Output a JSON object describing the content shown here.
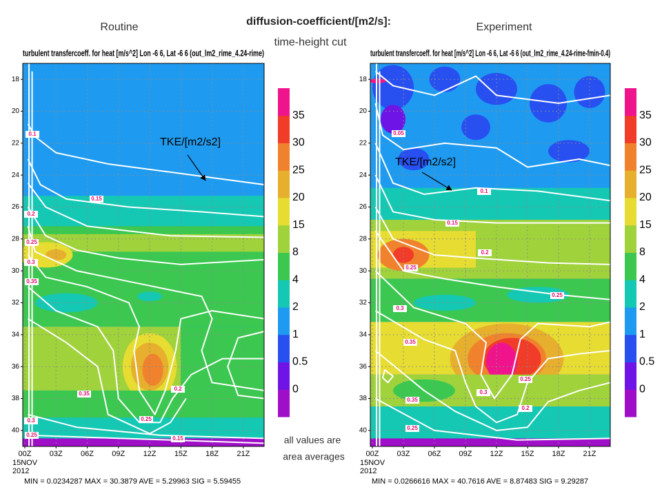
{
  "header": {
    "title": "diffusion-coefficient/[m2/s]:",
    "subtitle": "time-height cut",
    "note": [
      "all values are",
      "area averages"
    ]
  },
  "chart_data": [
    {
      "type": "contour",
      "label": "Routine",
      "title": "turbulent transfercoeff. for heat [m/s^2] Lon -6 6, Lat -6 6 (out_lm2_rime_4.24-rime)",
      "annotation": "TKE/[m2/s2]",
      "xlim": [
        -0.2,
        23
      ],
      "xticks": [
        {
          "value": 0,
          "label": "00Z"
        },
        {
          "value": 3,
          "label": "03Z"
        },
        {
          "value": 6,
          "label": "06Z"
        },
        {
          "value": 9,
          "label": "09Z"
        },
        {
          "value": 12,
          "label": "12Z"
        },
        {
          "value": 15,
          "label": "15Z"
        },
        {
          "value": 18,
          "label": "18Z"
        },
        {
          "value": 21,
          "label": "21Z"
        }
      ],
      "x_date": [
        "15NOV",
        "2012"
      ],
      "ylim": [
        17,
        41
      ],
      "y_reversed": true,
      "yticks": [
        18,
        20,
        22,
        24,
        26,
        28,
        30,
        32,
        34,
        36,
        38,
        40
      ],
      "grid": true,
      "contour_color": "#ffffff",
      "contour_labels": [
        0.1,
        0.15,
        0.2,
        0.25,
        0.3,
        0.35,
        0.35,
        0.2,
        0.25,
        0.3,
        0.25,
        0.15
      ],
      "colorbar": {
        "levels": [
          0,
          0.5,
          1,
          2,
          4,
          8,
          15,
          20,
          25,
          30,
          35
        ],
        "colors": [
          "#a00fc8",
          "#6e14e6",
          "#2850f0",
          "#1e9bf0",
          "#14c8b4",
          "#3cc850",
          "#a0d23c",
          "#e6dc32",
          "#e6af2d",
          "#f0822d",
          "#f03c28",
          "#f0148c"
        ]
      },
      "stats": "MIN = 0.0234287   MAX = 30.3879   AVE = 5.29963   SIG = 5.59455"
    },
    {
      "type": "contour",
      "label": "Experiment",
      "title": "turbulent transfercoeff. for heat [m/s^2] Lon -6 6, Lat -6 6 (out_lm2_rime_4.24-rime-fmin-0.4)",
      "annotation": "TKE/[m2/s2]",
      "xlim": [
        -0.2,
        23
      ],
      "xticks": [
        {
          "value": 0,
          "label": "00Z"
        },
        {
          "value": 3,
          "label": "03Z"
        },
        {
          "value": 6,
          "label": "06Z"
        },
        {
          "value": 9,
          "label": "09Z"
        },
        {
          "value": 12,
          "label": "12Z"
        },
        {
          "value": 15,
          "label": "15Z"
        },
        {
          "value": 18,
          "label": "18Z"
        },
        {
          "value": 21,
          "label": "21Z"
        }
      ],
      "x_date": [
        "15NOV",
        "2012"
      ],
      "ylim": [
        17,
        41
      ],
      "y_reversed": true,
      "yticks": [
        18,
        20,
        22,
        24,
        26,
        28,
        30,
        32,
        34,
        36,
        38,
        40
      ],
      "grid": true,
      "contour_color": "#ffffff",
      "contour_labels": [
        0.05,
        0.1,
        0.15,
        0.2,
        0.25,
        0.25,
        0.3,
        0.35,
        0.25,
        0.35,
        0.3,
        0.2,
        0.25
      ],
      "colorbar": {
        "levels": [
          0,
          0.5,
          1,
          2,
          4,
          8,
          15,
          20,
          25,
          30,
          35
        ],
        "colors": [
          "#a00fc8",
          "#6e14e6",
          "#2850f0",
          "#1e9bf0",
          "#14c8b4",
          "#3cc850",
          "#a0d23c",
          "#e6dc32",
          "#e6af2d",
          "#f0822d",
          "#f03c28",
          "#f0148c"
        ]
      },
      "stats": "MIN = 0.0266616   MAX = 40.7616   AVE = 8.87483   SIG = 9.29287"
    }
  ]
}
